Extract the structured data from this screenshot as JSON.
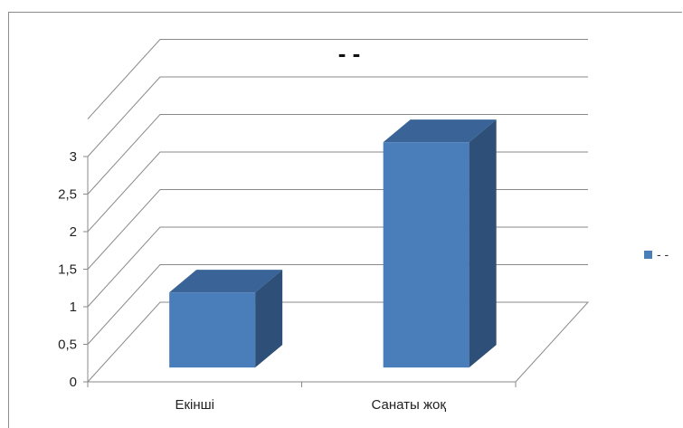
{
  "chart_data": {
    "type": "bar",
    "title": "- -",
    "categories": [
      "Екінші",
      "Санаты жоқ"
    ],
    "series": [
      {
        "name": "- -",
        "values": [
          1,
          3
        ],
        "color": "#4a7ebb"
      }
    ],
    "ylim": [
      0,
      3.5
    ],
    "yticks": [
      "0",
      "0,5",
      "1",
      "1,5",
      "2",
      "2,5",
      "3"
    ],
    "ytick_values": [
      0,
      0.5,
      1,
      1.5,
      2,
      2.5,
      3
    ],
    "grid": true,
    "legend": "right",
    "style": "3d-column"
  }
}
